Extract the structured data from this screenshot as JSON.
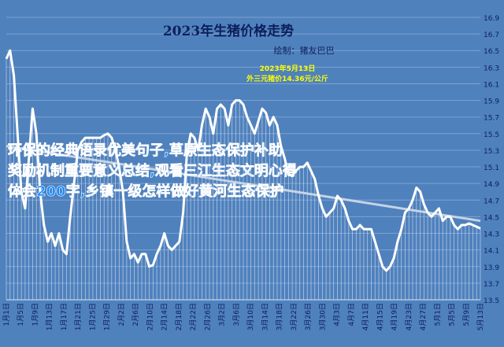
{
  "chart_data": {
    "type": "line",
    "title": "2023年生猪价格走势",
    "subtitle": "绘制：猪友巴巴",
    "annotation_date": "2023年5月13日",
    "annotation_price": "外三元猪价14.36元/公斤",
    "overlay_text": "环保的经典语录优美句子,草原生态保护补助奖励机制重要意义总结,观看三江生态文明心得体会200字,乡镇一级怎样做好黄河生态保护",
    "colors": {
      "background": "#4f81bd",
      "line": "#ffffff",
      "title": "#0d1f5a",
      "annotation": "#ffff00",
      "overlay": "#1a8cff",
      "trend": "#d0dbea"
    },
    "grid": true,
    "ylim": [
      13.5,
      16.9
    ],
    "yticks": [
      "13.5",
      "13.7",
      "13.9",
      "14.1",
      "14.3",
      "14.5",
      "14.7",
      "14.9",
      "15.1",
      "15.3",
      "15.5",
      "15.7",
      "15.9",
      "16.1",
      "16.3",
      "16.5",
      "16.7",
      "16.9"
    ],
    "xticks": [
      "1月1日",
      "1月5日",
      "1月9日",
      "1月13日",
      "1月17日",
      "1月21日",
      "1月25日",
      "1月29日",
      "2月2日",
      "2月6日",
      "2月10日",
      "2月14日",
      "2月18日",
      "2月22日",
      "2月26日",
      "3月2日",
      "3月6日",
      "3月10日",
      "3月14日",
      "3月18日",
      "3月22日",
      "3月26日",
      "3月30日",
      "4月3日",
      "4月7日",
      "4月11日",
      "4月15日",
      "4月19日",
      "4月23日",
      "4月27日",
      "5月1日",
      "5月5日",
      "5月9日",
      "5月13日"
    ],
    "trendline": [
      15.35,
      14.45
    ],
    "series": [
      {
        "values": [
          16.4,
          16.5,
          16.2,
          15.5,
          14.8,
          14.6,
          15.2,
          15.8,
          15.5,
          14.8,
          14.4,
          14.2,
          14.3,
          14.15,
          14.3,
          14.1,
          14.05,
          14.5,
          14.9,
          15.3,
          15.4,
          15.45,
          15.45,
          15.45,
          15.45,
          15.45,
          15.48,
          15.5,
          15.45,
          15.3,
          15.1,
          14.8,
          14.2,
          14.0,
          14.05,
          13.95,
          14.05,
          14.05,
          13.9,
          13.92,
          14.05,
          14.15,
          14.3,
          14.15,
          14.1,
          14.15,
          14.2,
          14.55,
          15.25,
          15.5,
          15.45,
          15.3,
          15.6,
          15.8,
          15.7,
          15.5,
          15.8,
          15.85,
          15.8,
          15.6,
          15.85,
          15.9,
          15.9,
          15.85,
          15.7,
          15.6,
          15.5,
          15.65,
          15.8,
          15.75,
          15.6,
          15.7,
          15.6,
          15.35,
          15.2,
          15.0,
          15.0,
          15.05,
          15.1,
          15.1,
          15.15,
          15.05,
          14.95,
          14.75,
          14.6,
          14.5,
          14.55,
          14.6,
          14.75,
          14.7,
          14.6,
          14.45,
          14.35,
          14.35,
          14.4,
          14.35,
          14.35,
          14.35,
          14.2,
          14.05,
          13.9,
          13.85,
          13.9,
          14.0,
          14.2,
          14.35,
          14.55,
          14.6,
          14.7,
          14.85,
          14.8,
          14.65,
          14.55,
          14.5,
          14.55,
          14.6,
          14.45,
          14.5,
          14.5,
          14.4,
          14.35,
          14.4,
          14.4,
          14.42,
          14.4,
          14.38,
          14.36
        ]
      }
    ]
  }
}
